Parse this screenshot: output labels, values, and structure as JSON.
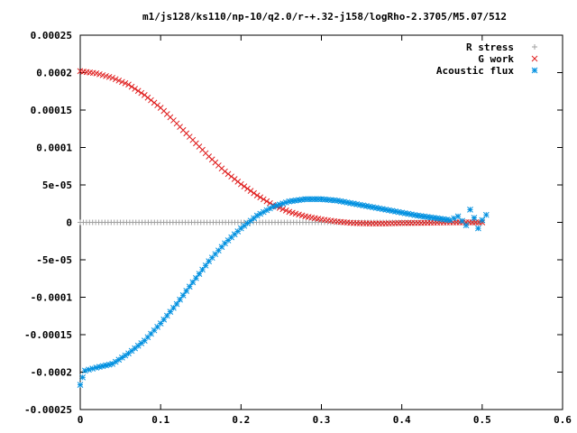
{
  "chart_data": {
    "type": "scatter",
    "title": "m1/js128/ks110/np-10/q2.0/r-+.32-j158/logRho-2.3705/M5.07/512",
    "xlabel": "",
    "ylabel": "",
    "xlim": [
      0,
      0.6
    ],
    "ylim": [
      -0.00025,
      0.00025
    ],
    "x_ticks": [
      "0",
      "0.1",
      "0.2",
      "0.3",
      "0.4",
      "0.5",
      "0.6"
    ],
    "x_tick_values": [
      0,
      0.1,
      0.2,
      0.3,
      0.4,
      0.5,
      0.6
    ],
    "y_ticks": [
      "0.00025",
      "0.0002",
      "0.00015",
      "0.0001",
      "5e-05",
      "0",
      "-5e-05",
      "-0.0001",
      "-0.00015",
      "-0.0002",
      "-0.00025"
    ],
    "y_tick_values": [
      0.00025,
      0.0002,
      0.00015,
      0.0001,
      5e-05,
      0,
      -5e-05,
      -0.0001,
      -0.00015,
      -0.0002,
      -0.00025
    ],
    "grid": false,
    "legend_position": "top-right",
    "series": [
      {
        "name": "R stress",
        "marker": "plus",
        "color": "#a0a0a0",
        "points": [
          [
            0.0,
            0.0
          ],
          [
            0.05,
            0.0
          ],
          [
            0.1,
            0.0
          ],
          [
            0.15,
            0.0
          ],
          [
            0.2,
            0.0
          ],
          [
            0.25,
            0.0
          ],
          [
            0.3,
            0.0
          ],
          [
            0.35,
            0.0
          ],
          [
            0.4,
            0.0
          ],
          [
            0.45,
            0.0
          ],
          [
            0.5,
            0.0
          ]
        ]
      },
      {
        "name": "G work",
        "marker": "cross",
        "color": "#e02020",
        "points": [
          [
            0.0,
            0.000202
          ],
          [
            0.02,
            0.000199
          ],
          [
            0.04,
            0.000193
          ],
          [
            0.06,
            0.000184
          ],
          [
            0.08,
            0.00017
          ],
          [
            0.1,
            0.000153
          ],
          [
            0.12,
            0.000132
          ],
          [
            0.14,
            0.00011
          ],
          [
            0.16,
            8.8e-05
          ],
          [
            0.18,
            6.8e-05
          ],
          [
            0.2,
            5.1e-05
          ],
          [
            0.22,
            3.6e-05
          ],
          [
            0.24,
            2.3e-05
          ],
          [
            0.26,
            1.4e-05
          ],
          [
            0.28,
            8e-06
          ],
          [
            0.3,
            4e-06
          ],
          [
            0.32,
            1e-06
          ],
          [
            0.34,
            -1e-06
          ],
          [
            0.36,
            -1.5e-06
          ],
          [
            0.38,
            -1.5e-06
          ],
          [
            0.4,
            -1e-06
          ],
          [
            0.42,
            -8e-07
          ],
          [
            0.44,
            -4e-07
          ],
          [
            0.46,
            0.0
          ],
          [
            0.48,
            0.0
          ],
          [
            0.5,
            0.0
          ]
        ]
      },
      {
        "name": "Acoustic flux",
        "marker": "star",
        "color": "#0090e0",
        "points": [
          [
            0.0,
            -0.000217
          ],
          [
            0.003,
            -0.000207
          ],
          [
            0.006,
            -0.000198
          ],
          [
            0.02,
            -0.000194
          ],
          [
            0.04,
            -0.000189
          ],
          [
            0.06,
            -0.000175
          ],
          [
            0.08,
            -0.000158
          ],
          [
            0.1,
            -0.000135
          ],
          [
            0.12,
            -0.000109
          ],
          [
            0.14,
            -8e-05
          ],
          [
            0.16,
            -5.2e-05
          ],
          [
            0.18,
            -2.8e-05
          ],
          [
            0.2,
            -8e-06
          ],
          [
            0.22,
            9e-06
          ],
          [
            0.24,
            2.1e-05
          ],
          [
            0.26,
            2.8e-05
          ],
          [
            0.28,
            3.1e-05
          ],
          [
            0.3,
            3.1e-05
          ],
          [
            0.32,
            2.9e-05
          ],
          [
            0.34,
            2.5e-05
          ],
          [
            0.36,
            2.1e-05
          ],
          [
            0.38,
            1.7e-05
          ],
          [
            0.4,
            1.3e-05
          ],
          [
            0.42,
            9e-06
          ],
          [
            0.44,
            6e-06
          ],
          [
            0.46,
            3e-06
          ],
          [
            0.47,
            8e-06
          ],
          [
            0.48,
            -4e-06
          ],
          [
            0.485,
            1.7e-05
          ],
          [
            0.49,
            6e-06
          ],
          [
            0.495,
            -8e-06
          ],
          [
            0.5,
            3e-06
          ],
          [
            0.505,
            1e-05
          ]
        ]
      }
    ]
  }
}
